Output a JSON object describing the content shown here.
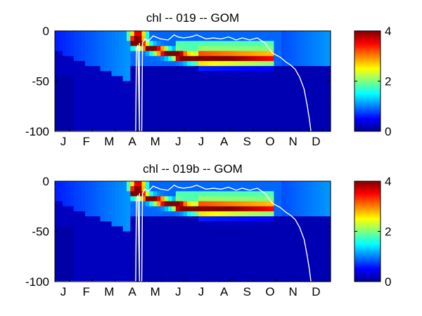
{
  "chart_data": [
    {
      "type": "heatmap",
      "title": "chl -- 019 -- GOM",
      "xlabel": "",
      "ylabel": "",
      "x_tick_labels": [
        "J",
        "F",
        "M",
        "A",
        "M",
        "J",
        "J",
        "A",
        "S",
        "O",
        "N",
        "D"
      ],
      "y_ticks": [
        0,
        -50,
        -100
      ],
      "y_tick_labels": [
        "0",
        "-50",
        "-100"
      ],
      "ylim": [
        -100,
        0
      ],
      "colorbar": {
        "ticks": [
          0,
          2,
          4
        ],
        "tick_labels": [
          "0",
          "2",
          "4"
        ],
        "clim": [
          0,
          4
        ],
        "colormap": "jet"
      },
      "dcm_trace": [
        {
          "day": 100,
          "depth": -12
        },
        {
          "day": 115,
          "depth": -14
        },
        {
          "day": 125,
          "depth": -17
        },
        {
          "day": 135,
          "depth": -19
        },
        {
          "day": 145,
          "depth": -21
        },
        {
          "day": 155,
          "depth": -23
        },
        {
          "day": 165,
          "depth": -25
        },
        {
          "day": 175,
          "depth": -27
        },
        {
          "day": 185,
          "depth": -28
        }
      ],
      "mixed_layer_depth": [
        {
          "day": 1,
          "depth": -100
        },
        {
          "day": 107,
          "depth": -100
        },
        {
          "day": 108,
          "depth": -18
        },
        {
          "day": 110,
          "depth": -14
        },
        {
          "day": 112,
          "depth": -100
        },
        {
          "day": 115,
          "depth": -100
        },
        {
          "day": 116,
          "depth": -12
        },
        {
          "day": 119,
          "depth": -8
        },
        {
          "day": 124,
          "depth": -10
        },
        {
          "day": 130,
          "depth": -5
        },
        {
          "day": 140,
          "depth": -8
        },
        {
          "day": 150,
          "depth": -9
        },
        {
          "day": 158,
          "depth": -4
        },
        {
          "day": 163,
          "depth": -6
        },
        {
          "day": 170,
          "depth": -7
        },
        {
          "day": 180,
          "depth": -6
        },
        {
          "day": 188,
          "depth": -4
        },
        {
          "day": 200,
          "depth": -8
        },
        {
          "day": 210,
          "depth": -7
        },
        {
          "day": 220,
          "depth": -8
        },
        {
          "day": 230,
          "depth": -6
        },
        {
          "day": 240,
          "depth": -9
        },
        {
          "day": 248,
          "depth": -7
        },
        {
          "day": 258,
          "depth": -9
        },
        {
          "day": 268,
          "depth": -7
        },
        {
          "day": 278,
          "depth": -12
        },
        {
          "day": 288,
          "depth": -22
        },
        {
          "day": 298,
          "depth": -26
        },
        {
          "day": 306,
          "depth": -31
        },
        {
          "day": 312,
          "depth": -34
        },
        {
          "day": 318,
          "depth": -38
        },
        {
          "day": 324,
          "depth": -46
        },
        {
          "day": 330,
          "depth": -58
        },
        {
          "day": 334,
          "depth": -74
        },
        {
          "day": 337,
          "depth": -88
        },
        {
          "day": 339,
          "depth": -100
        }
      ]
    },
    {
      "type": "heatmap",
      "title": "chl -- 019b -- GOM",
      "xlabel": "",
      "ylabel": "",
      "x_tick_labels": [
        "J",
        "F",
        "M",
        "A",
        "M",
        "J",
        "J",
        "A",
        "S",
        "O",
        "N",
        "D"
      ],
      "y_ticks": [
        0,
        -50,
        -100
      ],
      "y_tick_labels": [
        "0",
        "-50",
        "-100"
      ],
      "ylim": [
        -100,
        0
      ],
      "colorbar": {
        "ticks": [
          0,
          2,
          4
        ],
        "tick_labels": [
          "0",
          "2",
          "4"
        ],
        "clim": [
          0,
          4
        ],
        "colormap": "jet"
      },
      "dcm_trace": [
        {
          "day": 100,
          "depth": -12
        },
        {
          "day": 115,
          "depth": -14
        },
        {
          "day": 125,
          "depth": -17
        },
        {
          "day": 135,
          "depth": -19
        },
        {
          "day": 145,
          "depth": -21
        },
        {
          "day": 155,
          "depth": -23
        },
        {
          "day": 165,
          "depth": -25
        },
        {
          "day": 175,
          "depth": -27
        },
        {
          "day": 185,
          "depth": -28
        }
      ],
      "mixed_layer_depth": [
        {
          "day": 1,
          "depth": -100
        },
        {
          "day": 107,
          "depth": -100
        },
        {
          "day": 108,
          "depth": -18
        },
        {
          "day": 110,
          "depth": -14
        },
        {
          "day": 112,
          "depth": -100
        },
        {
          "day": 115,
          "depth": -100
        },
        {
          "day": 116,
          "depth": -12
        },
        {
          "day": 119,
          "depth": -8
        },
        {
          "day": 124,
          "depth": -10
        },
        {
          "day": 130,
          "depth": -5
        },
        {
          "day": 140,
          "depth": -8
        },
        {
          "day": 150,
          "depth": -9
        },
        {
          "day": 158,
          "depth": -4
        },
        {
          "day": 163,
          "depth": -6
        },
        {
          "day": 170,
          "depth": -7
        },
        {
          "day": 180,
          "depth": -6
        },
        {
          "day": 188,
          "depth": -4
        },
        {
          "day": 200,
          "depth": -8
        },
        {
          "day": 210,
          "depth": -7
        },
        {
          "day": 220,
          "depth": -8
        },
        {
          "day": 230,
          "depth": -6
        },
        {
          "day": 240,
          "depth": -9
        },
        {
          "day": 248,
          "depth": -7
        },
        {
          "day": 258,
          "depth": -9
        },
        {
          "day": 268,
          "depth": -7
        },
        {
          "day": 278,
          "depth": -12
        },
        {
          "day": 288,
          "depth": -22
        },
        {
          "day": 298,
          "depth": -26
        },
        {
          "day": 306,
          "depth": -31
        },
        {
          "day": 312,
          "depth": -34
        },
        {
          "day": 318,
          "depth": -38
        },
        {
          "day": 324,
          "depth": -46
        },
        {
          "day": 330,
          "depth": -58
        },
        {
          "day": 334,
          "depth": -74
        },
        {
          "day": 337,
          "depth": -88
        },
        {
          "day": 339,
          "depth": -100
        }
      ]
    }
  ]
}
